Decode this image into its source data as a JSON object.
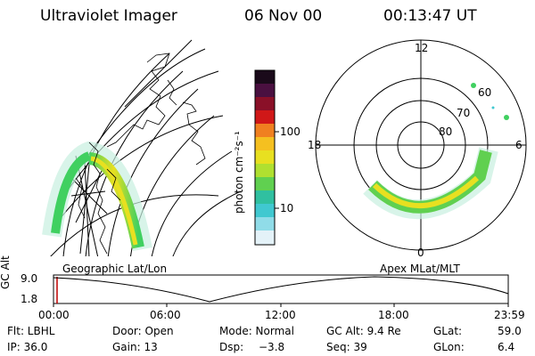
{
  "header": {
    "instrument": "Ultraviolet Imager",
    "date": "06 Nov 00",
    "time": "00:13:47 UT"
  },
  "colorbar": {
    "label": "photon cm⁻²s⁻¹",
    "ticks": [
      "100",
      "10"
    ],
    "colors": [
      "#1a0a1a",
      "#3a1040",
      "#7a1030",
      "#c01020",
      "#e04010",
      "#f08020",
      "#f5c020",
      "#e8e020",
      "#a0e030",
      "#40d060",
      "#30c0c0",
      "#80d8e8",
      "#e0f0f8"
    ]
  },
  "maps": {
    "left_title": "Geographic Lat/Lon",
    "right_title": "Apex MLat/MLT",
    "mlt_labels": {
      "top": "12",
      "left": "18",
      "right": "6",
      "bottom": "0"
    },
    "lat_labels": [
      "60",
      "70",
      "80"
    ]
  },
  "timeline": {
    "axis_label": "GC Alt",
    "y_ticks": [
      "9.0",
      "1.8"
    ],
    "x_ticks": [
      "00:00",
      "06:00",
      "12:00",
      "18:00",
      "23:59"
    ]
  },
  "info": {
    "flt": "Flt: LBHL",
    "ip": "IP: 36.0",
    "door": "Door: Open",
    "gain": "Gain: 13",
    "mode": "Mode: Normal",
    "dsp_label": "Dsp:",
    "dsp_value": "−3.8",
    "gcalt": "GC Alt: 9.4 Re",
    "seq": "Seq: 39",
    "glat_label": "GLat:",
    "glat_value": "59.0",
    "glon_label": "GLon:",
    "glon_value": "6.4"
  }
}
